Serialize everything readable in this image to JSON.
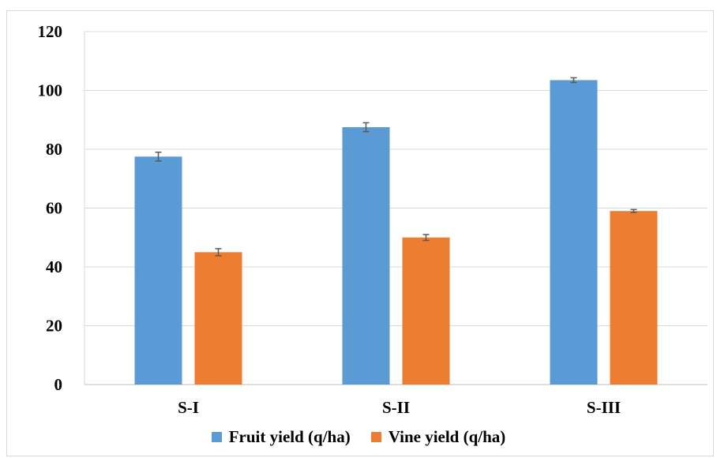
{
  "chart_data": {
    "type": "bar",
    "categories": [
      "S-I",
      "S-II",
      "S-III"
    ],
    "series": [
      {
        "name": "Fruit yield (q/ha)",
        "values": [
          77.5,
          87.5,
          103.5
        ],
        "errors": [
          1.5,
          1.5,
          0.8
        ],
        "color": "#5b9bd5"
      },
      {
        "name": "Vine yield (q/ha)",
        "values": [
          45,
          50,
          59
        ],
        "errors": [
          1.2,
          1.0,
          0.5
        ],
        "color": "#ed7d31"
      }
    ],
    "ylim": [
      0,
      120
    ],
    "yticks": [
      0,
      20,
      40,
      60,
      80,
      100,
      120
    ],
    "grid": true,
    "legend": "bottom",
    "title": "",
    "xlabel": "",
    "ylabel": ""
  }
}
